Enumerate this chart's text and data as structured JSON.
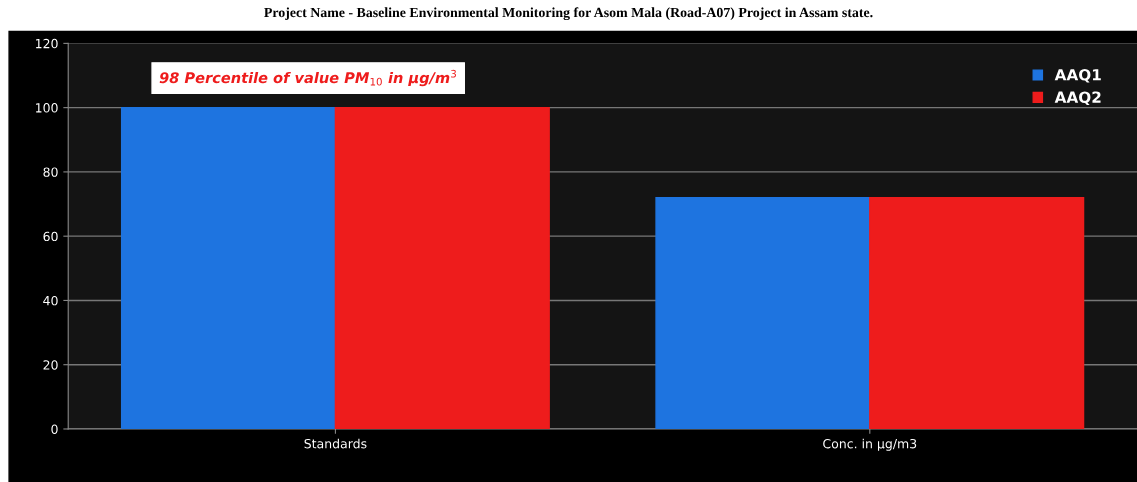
{
  "chart_data": {
    "type": "bar",
    "title": "Project Name - Baseline Environmental Monitoring for Asom Mala (Road-A07) Project in Assam state.",
    "categories": [
      "Standards",
      "Conc. in µg/m3"
    ],
    "series": [
      {
        "name": "AAQ1",
        "color": "#1e74e0",
        "values": [
          100,
          72
        ]
      },
      {
        "name": "AAQ2",
        "color": "#ee1c1c",
        "values": [
          100,
          72
        ]
      }
    ],
    "annotations": [
      "98 Percentile of value PM$_{10}$ in µg/m$^{3}$"
    ],
    "ylim": [
      0,
      120
    ],
    "yticks": [
      0,
      20,
      40,
      60,
      80,
      100,
      120
    ],
    "grid": "y",
    "legend": "top right"
  }
}
